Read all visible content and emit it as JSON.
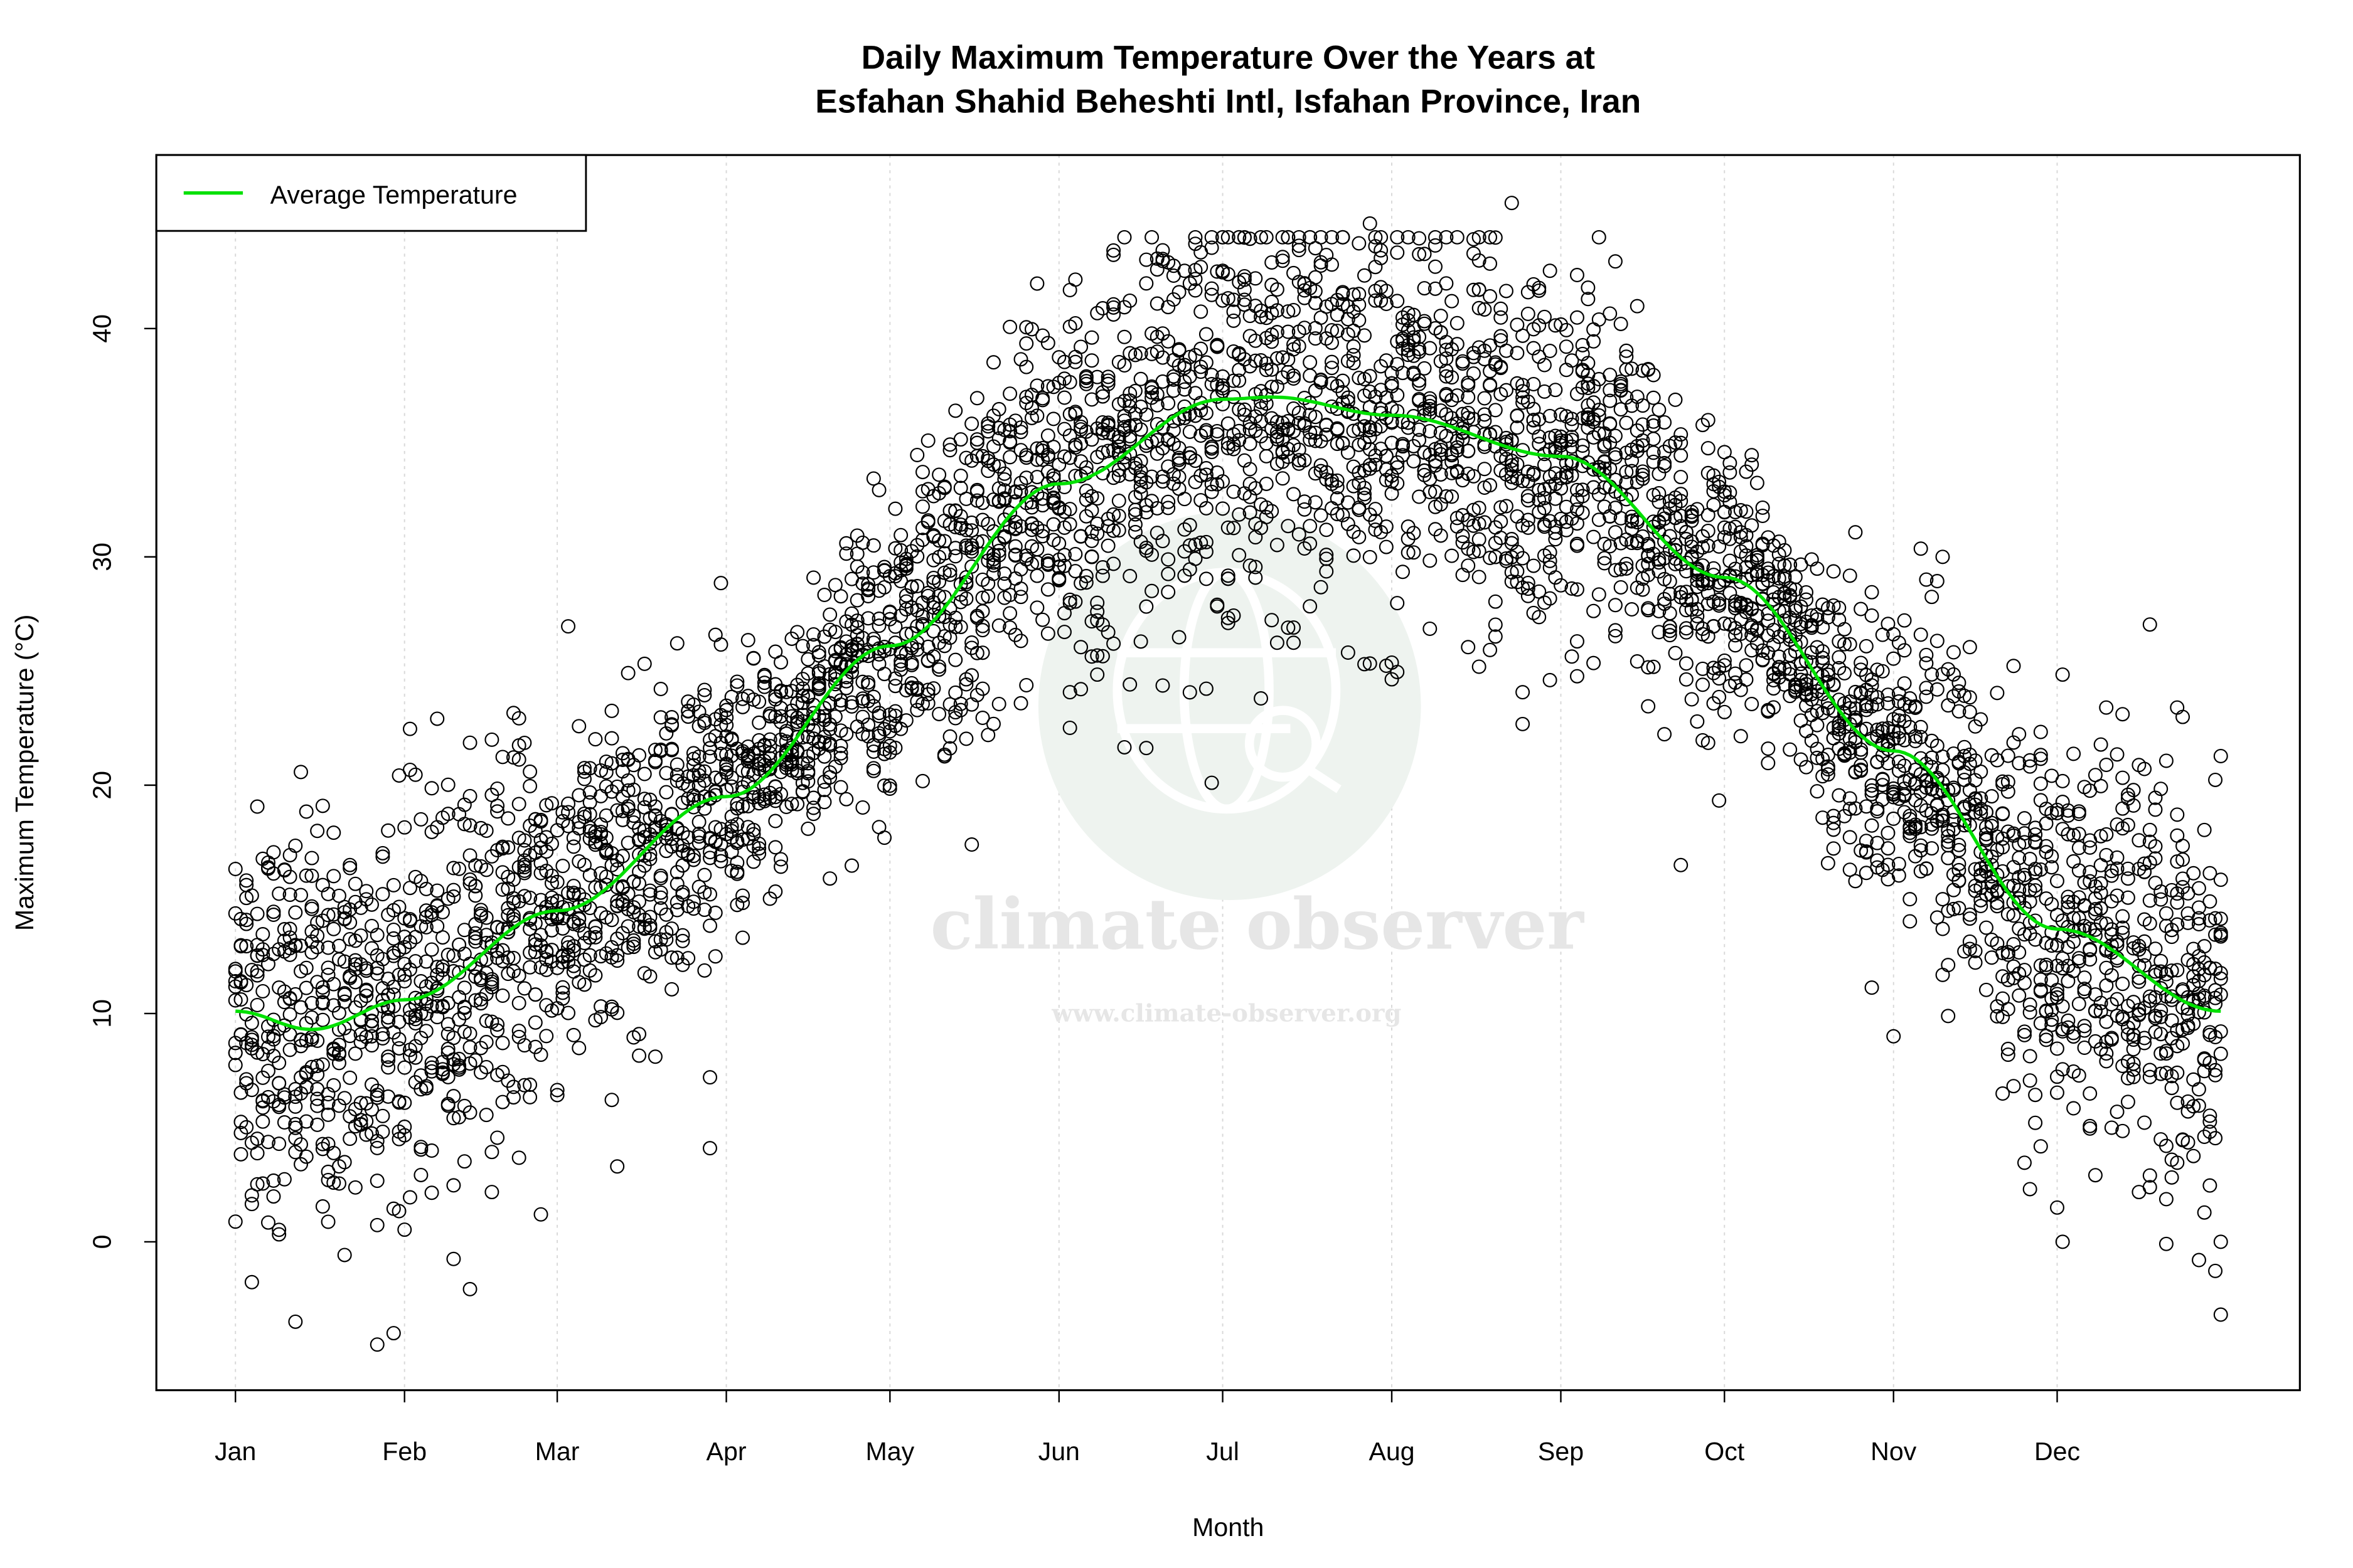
{
  "chart_data": {
    "type": "scatter",
    "title": "Daily Maximum Temperature Over the Years at",
    "subtitle": "Esfahan Shahid Beheshti Intl, Isfahan Province, Iran",
    "xlabel": "Month",
    "ylabel": "Maximum Temperature (°C)",
    "xlim": [
      -13.5,
      379.5
    ],
    "ylim": [
      -6.5,
      47.6
    ],
    "grid": "vertical dotted at month ticks",
    "x_ticks": [
      {
        "day": 1,
        "label": "Jan"
      },
      {
        "day": 32,
        "label": "Feb"
      },
      {
        "day": 60,
        "label": "Mar"
      },
      {
        "day": 91,
        "label": "Apr"
      },
      {
        "day": 121,
        "label": "May"
      },
      {
        "day": 152,
        "label": "Jun"
      },
      {
        "day": 182,
        "label": "Jul"
      },
      {
        "day": 213,
        "label": "Aug"
      },
      {
        "day": 244,
        "label": "Sep"
      },
      {
        "day": 274,
        "label": "Oct"
      },
      {
        "day": 305,
        "label": "Nov"
      },
      {
        "day": 335,
        "label": "Dec"
      }
    ],
    "y_ticks": [
      0,
      10,
      20,
      30,
      40
    ],
    "legend": {
      "position": "top-left",
      "entries": [
        {
          "label": "Average Temperature",
          "color": "#00e000"
        }
      ]
    },
    "average_line": {
      "name": "Average Temperature",
      "color": "#00e000",
      "points": [
        [
          1,
          10.1
        ],
        [
          15,
          9.3
        ],
        [
          32,
          10.6
        ],
        [
          60,
          14.5
        ],
        [
          91,
          19.5
        ],
        [
          121,
          26.1
        ],
        [
          152,
          33.2
        ],
        [
          182,
          36.9
        ],
        [
          191,
          37.0
        ],
        [
          213,
          36.2
        ],
        [
          244,
          34.4
        ],
        [
          274,
          29.1
        ],
        [
          305,
          21.5
        ],
        [
          335,
          13.7
        ],
        [
          365,
          10.1
        ]
      ]
    },
    "scatter_observations": {
      "marker": "open circle",
      "color": "#000000",
      "day_range": [
        1,
        365
      ],
      "notable_points": [
        [
          235,
          45.5
        ],
        [
          209,
          44.6
        ],
        [
          314,
          30.0
        ],
        [
          27,
          -4.5
        ],
        [
          12,
          -3.5
        ],
        [
          336,
          0.0
        ],
        [
          361,
          -0.8
        ],
        [
          365,
          0.0
        ],
        [
          242,
          24.6
        ],
        [
          266,
          16.5
        ],
        [
          305,
          9.0
        ],
        [
          208,
          25.3
        ],
        [
          194,
          26.9
        ],
        [
          136,
          17.4
        ],
        [
          88,
          4.1
        ],
        [
          71,
          3.3
        ],
        [
          57,
          1.2
        ],
        [
          335,
          1.5
        ],
        [
          344,
          23.4
        ],
        [
          357,
          23.4
        ]
      ]
    }
  },
  "watermark": {
    "name": "climate observer",
    "url": "www.climate-observer.org"
  }
}
